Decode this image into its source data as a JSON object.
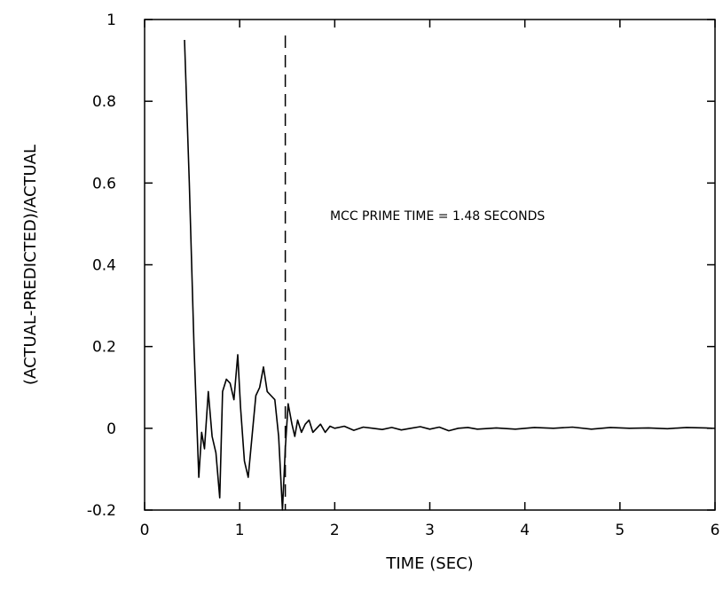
{
  "chart_data": {
    "type": "line",
    "xlabel": "TIME (SEC)",
    "ylabel": "(ACTUAL-PREDICTED)/ACTUAL",
    "xlim": [
      0,
      6
    ],
    "ylim": [
      -0.2,
      1
    ],
    "x_ticks": [
      0,
      1,
      2,
      3,
      4,
      5,
      6
    ],
    "x_tick_labels": [
      "0",
      "1",
      "2",
      "3",
      "4",
      "5",
      "6"
    ],
    "y_ticks": [
      -0.2,
      0,
      0.2,
      0.4,
      0.6,
      0.8,
      1
    ],
    "y_tick_labels": [
      "-0.2",
      "0",
      "0.2",
      "0.4",
      "0.6",
      "0.8",
      "1"
    ],
    "grid": false,
    "annotation": {
      "text": "MCC PRIME TIME = 1.48 SECONDS",
      "x": 1.95,
      "y": 0.51
    },
    "vline": {
      "x": 1.48,
      "style": "dashed"
    },
    "series": [
      {
        "color": "#000000",
        "x": [
          0.42,
          0.47,
          0.52,
          0.57,
          0.6,
          0.63,
          0.67,
          0.71,
          0.75,
          0.79,
          0.82,
          0.86,
          0.9,
          0.94,
          0.98,
          1.01,
          1.05,
          1.09,
          1.13,
          1.17,
          1.21,
          1.25,
          1.29,
          1.33,
          1.37,
          1.41,
          1.45,
          1.48,
          1.51,
          1.55,
          1.58,
          1.61,
          1.65,
          1.69,
          1.73,
          1.77,
          1.81,
          1.85,
          1.9,
          1.95,
          2.0,
          2.1,
          2.2,
          2.3,
          2.4,
          2.5,
          2.6,
          2.7,
          2.8,
          2.9,
          3.0,
          3.1,
          3.2,
          3.3,
          3.4,
          3.5,
          3.7,
          3.9,
          4.1,
          4.3,
          4.5,
          4.7,
          4.9,
          5.1,
          5.3,
          5.5,
          5.7,
          5.9,
          5.97
        ],
        "y": [
          0.95,
          0.6,
          0.2,
          -0.12,
          -0.01,
          -0.05,
          0.09,
          -0.02,
          -0.06,
          -0.17,
          0.09,
          0.12,
          0.11,
          0.07,
          0.18,
          0.05,
          -0.08,
          -0.12,
          -0.02,
          0.08,
          0.1,
          0.15,
          0.09,
          0.08,
          0.07,
          -0.02,
          -0.2,
          -0.05,
          0.06,
          0.01,
          -0.02,
          0.02,
          -0.01,
          0.01,
          0.02,
          -0.01,
          0.0,
          0.01,
          -0.01,
          0.005,
          0.0,
          0.005,
          -0.005,
          0.003,
          0.0,
          -0.003,
          0.002,
          -0.004,
          0.0,
          0.004,
          -0.002,
          0.003,
          -0.006,
          0.0,
          0.002,
          -0.002,
          0.001,
          -0.002,
          0.002,
          0.0,
          0.003,
          -0.002,
          0.002,
          0.0,
          0.001,
          -0.001,
          0.002,
          0.001,
          0.0
        ]
      }
    ]
  }
}
